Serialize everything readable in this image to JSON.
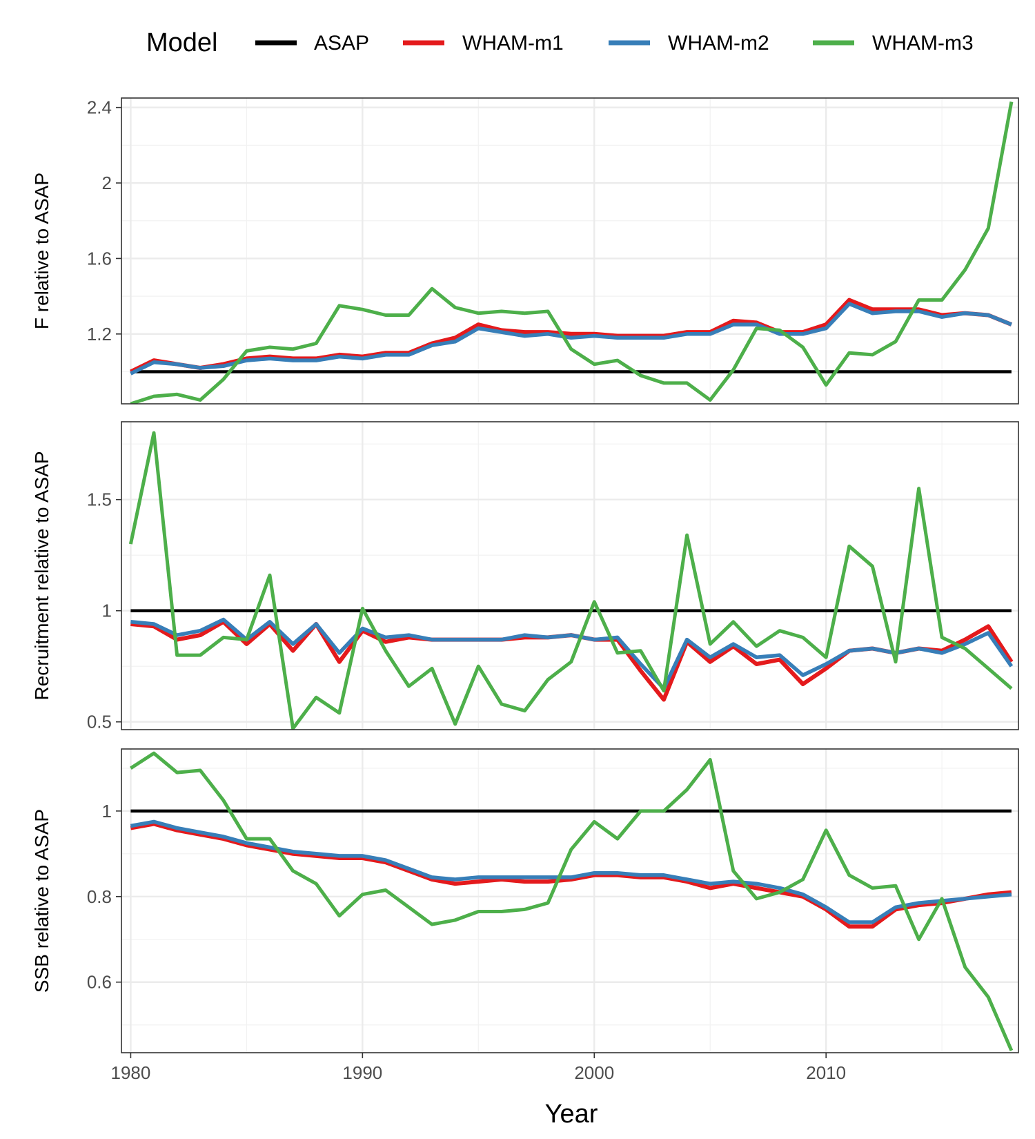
{
  "legend": {
    "title": "Model",
    "entries": [
      {
        "name": "ASAP",
        "color": "#000000"
      },
      {
        "name": "WHAM-m1",
        "color": "#e41a1c"
      },
      {
        "name": "WHAM-m2",
        "color": "#377eb8"
      },
      {
        "name": "WHAM-m3",
        "color": "#4daf4a"
      }
    ]
  },
  "chart_data": {
    "type": "line",
    "xlabel": "Year",
    "x": [
      1980,
      1981,
      1982,
      1983,
      1984,
      1985,
      1986,
      1987,
      1988,
      1989,
      1990,
      1991,
      1992,
      1993,
      1994,
      1995,
      1996,
      1997,
      1998,
      1999,
      2000,
      2001,
      2002,
      2003,
      2004,
      2005,
      2006,
      2007,
      2008,
      2009,
      2010,
      2011,
      2012,
      2013,
      2014,
      2015,
      2016,
      2017,
      2018
    ],
    "xlim": [
      1979.6,
      2018.3
    ],
    "xticks": [
      1980,
      1990,
      2000,
      2010
    ],
    "xtick_labels": [
      "1980",
      "1990",
      "2000",
      "2010"
    ],
    "panels": [
      {
        "ylabel": "F relative to ASAP",
        "ylim": [
          0.83,
          2.45
        ],
        "yticks": [
          1.2,
          1.6,
          2,
          2.4
        ],
        "ytick_labels": [
          "1.2",
          "1.6",
          "2",
          "2.4"
        ],
        "yminor": [
          1.0,
          1.4,
          1.8,
          2.2
        ],
        "series": [
          {
            "name": "ASAP",
            "values": [
              1.0,
              1.0,
              1.0,
              1.0,
              1.0,
              1.0,
              1.0,
              1.0,
              1.0,
              1.0,
              1.0,
              1.0,
              1.0,
              1.0,
              1.0,
              1.0,
              1.0,
              1.0,
              1.0,
              1.0,
              1.0,
              1.0,
              1.0,
              1.0,
              1.0,
              1.0,
              1.0,
              1.0,
              1.0,
              1.0,
              1.0,
              1.0,
              1.0,
              1.0,
              1.0,
              1.0,
              1.0,
              1.0,
              1.0
            ]
          },
          {
            "name": "WHAM-m1",
            "values": [
              1.0,
              1.06,
              1.04,
              1.02,
              1.04,
              1.07,
              1.08,
              1.07,
              1.07,
              1.09,
              1.08,
              1.1,
              1.1,
              1.15,
              1.18,
              1.25,
              1.22,
              1.21,
              1.21,
              1.2,
              1.2,
              1.19,
              1.19,
              1.19,
              1.21,
              1.21,
              1.27,
              1.26,
              1.21,
              1.21,
              1.25,
              1.38,
              1.33,
              1.33,
              1.33,
              1.3,
              1.31,
              1.3,
              1.25
            ]
          },
          {
            "name": "WHAM-m2",
            "values": [
              0.99,
              1.05,
              1.04,
              1.02,
              1.03,
              1.06,
              1.07,
              1.06,
              1.06,
              1.08,
              1.07,
              1.09,
              1.09,
              1.14,
              1.16,
              1.23,
              1.21,
              1.19,
              1.2,
              1.18,
              1.19,
              1.18,
              1.18,
              1.18,
              1.2,
              1.2,
              1.25,
              1.25,
              1.2,
              1.2,
              1.23,
              1.36,
              1.31,
              1.32,
              1.32,
              1.29,
              1.31,
              1.3,
              1.25
            ]
          },
          {
            "name": "WHAM-m3",
            "values": [
              0.83,
              0.87,
              0.88,
              0.85,
              0.96,
              1.11,
              1.13,
              1.12,
              1.15,
              1.35,
              1.33,
              1.3,
              1.3,
              1.44,
              1.34,
              1.31,
              1.32,
              1.31,
              1.32,
              1.12,
              1.04,
              1.06,
              0.98,
              0.94,
              0.94,
              0.85,
              1.01,
              1.23,
              1.22,
              1.13,
              0.93,
              1.1,
              1.09,
              1.16,
              1.38,
              1.38,
              1.54,
              1.76,
              2.43
            ]
          }
        ]
      },
      {
        "ylabel": "Recruitment relative to ASAP",
        "ylim": [
          0.465,
          1.85
        ],
        "yticks": [
          0.5,
          1,
          1.5
        ],
        "ytick_labels": [
          "0.5",
          "1",
          "1.5"
        ],
        "yminor": [
          0.75,
          1.25,
          1.75
        ],
        "series": [
          {
            "name": "ASAP",
            "values": [
              1.0,
              1.0,
              1.0,
              1.0,
              1.0,
              1.0,
              1.0,
              1.0,
              1.0,
              1.0,
              1.0,
              1.0,
              1.0,
              1.0,
              1.0,
              1.0,
              1.0,
              1.0,
              1.0,
              1.0,
              1.0,
              1.0,
              1.0,
              1.0,
              1.0,
              1.0,
              1.0,
              1.0,
              1.0,
              1.0,
              1.0,
              1.0,
              1.0,
              1.0,
              1.0,
              1.0,
              1.0,
              1.0,
              1.0
            ]
          },
          {
            "name": "WHAM-m1",
            "values": [
              0.94,
              0.93,
              0.87,
              0.89,
              0.95,
              0.85,
              0.94,
              0.82,
              0.94,
              0.77,
              0.91,
              0.86,
              0.88,
              0.87,
              0.87,
              0.87,
              0.87,
              0.88,
              0.88,
              0.89,
              0.87,
              0.87,
              0.73,
              0.6,
              0.86,
              0.77,
              0.84,
              0.76,
              0.78,
              0.67,
              0.74,
              0.82,
              0.83,
              0.81,
              0.83,
              0.82,
              0.87,
              0.93,
              0.77
            ]
          },
          {
            "name": "WHAM-m2",
            "values": [
              0.95,
              0.94,
              0.89,
              0.91,
              0.96,
              0.87,
              0.95,
              0.85,
              0.94,
              0.81,
              0.92,
              0.88,
              0.89,
              0.87,
              0.87,
              0.87,
              0.87,
              0.89,
              0.88,
              0.89,
              0.87,
              0.88,
              0.76,
              0.65,
              0.87,
              0.79,
              0.85,
              0.79,
              0.8,
              0.71,
              0.76,
              0.82,
              0.83,
              0.81,
              0.83,
              0.81,
              0.85,
              0.9,
              0.75
            ]
          },
          {
            "name": "WHAM-m3",
            "values": [
              1.3,
              1.8,
              0.8,
              0.8,
              0.88,
              0.87,
              1.16,
              0.47,
              0.61,
              0.54,
              1.01,
              0.82,
              0.66,
              0.74,
              0.49,
              0.75,
              0.58,
              0.55,
              0.69,
              0.77,
              1.04,
              0.81,
              0.82,
              0.64,
              1.34,
              0.85,
              0.95,
              0.84,
              0.91,
              0.88,
              0.79,
              1.29,
              1.2,
              0.77,
              1.55,
              0.88,
              0.83,
              0.74,
              0.65
            ]
          }
        ]
      },
      {
        "ylabel": "SSB relative to ASAP",
        "ylim": [
          0.435,
          1.145
        ],
        "yticks": [
          0.6,
          0.8,
          1
        ],
        "ytick_labels": [
          "0.6",
          "0.8",
          "1"
        ],
        "yminor": [
          0.5,
          0.7,
          0.9,
          1.1
        ],
        "series": [
          {
            "name": "ASAP",
            "values": [
              1.0,
              1.0,
              1.0,
              1.0,
              1.0,
              1.0,
              1.0,
              1.0,
              1.0,
              1.0,
              1.0,
              1.0,
              1.0,
              1.0,
              1.0,
              1.0,
              1.0,
              1.0,
              1.0,
              1.0,
              1.0,
              1.0,
              1.0,
              1.0,
              1.0,
              1.0,
              1.0,
              1.0,
              1.0,
              1.0,
              1.0,
              1.0,
              1.0,
              1.0,
              1.0,
              1.0,
              1.0,
              1.0,
              1.0
            ]
          },
          {
            "name": "WHAM-m1",
            "values": [
              0.96,
              0.97,
              0.955,
              0.945,
              0.935,
              0.92,
              0.91,
              0.9,
              0.895,
              0.89,
              0.89,
              0.88,
              0.86,
              0.84,
              0.83,
              0.835,
              0.84,
              0.835,
              0.835,
              0.84,
              0.85,
              0.85,
              0.845,
              0.845,
              0.835,
              0.82,
              0.83,
              0.82,
              0.81,
              0.8,
              0.77,
              0.73,
              0.73,
              0.77,
              0.78,
              0.785,
              0.795,
              0.805,
              0.81
            ]
          },
          {
            "name": "WHAM-m2",
            "values": [
              0.965,
              0.975,
              0.96,
              0.95,
              0.94,
              0.925,
              0.915,
              0.905,
              0.9,
              0.895,
              0.895,
              0.885,
              0.865,
              0.845,
              0.84,
              0.845,
              0.845,
              0.845,
              0.845,
              0.845,
              0.855,
              0.855,
              0.85,
              0.85,
              0.84,
              0.83,
              0.835,
              0.83,
              0.82,
              0.805,
              0.775,
              0.74,
              0.74,
              0.775,
              0.785,
              0.79,
              0.795,
              0.8,
              0.805
            ]
          },
          {
            "name": "WHAM-m3",
            "values": [
              1.1,
              1.135,
              1.09,
              1.095,
              1.025,
              0.935,
              0.935,
              0.86,
              0.83,
              0.755,
              0.805,
              0.815,
              0.775,
              0.735,
              0.745,
              0.765,
              0.765,
              0.77,
              0.785,
              0.91,
              0.975,
              0.935,
              1.0,
              1.0,
              1.05,
              1.12,
              0.86,
              0.795,
              0.81,
              0.84,
              0.955,
              0.85,
              0.82,
              0.825,
              0.7,
              0.795,
              0.635,
              0.565,
              0.44
            ]
          }
        ]
      }
    ]
  }
}
